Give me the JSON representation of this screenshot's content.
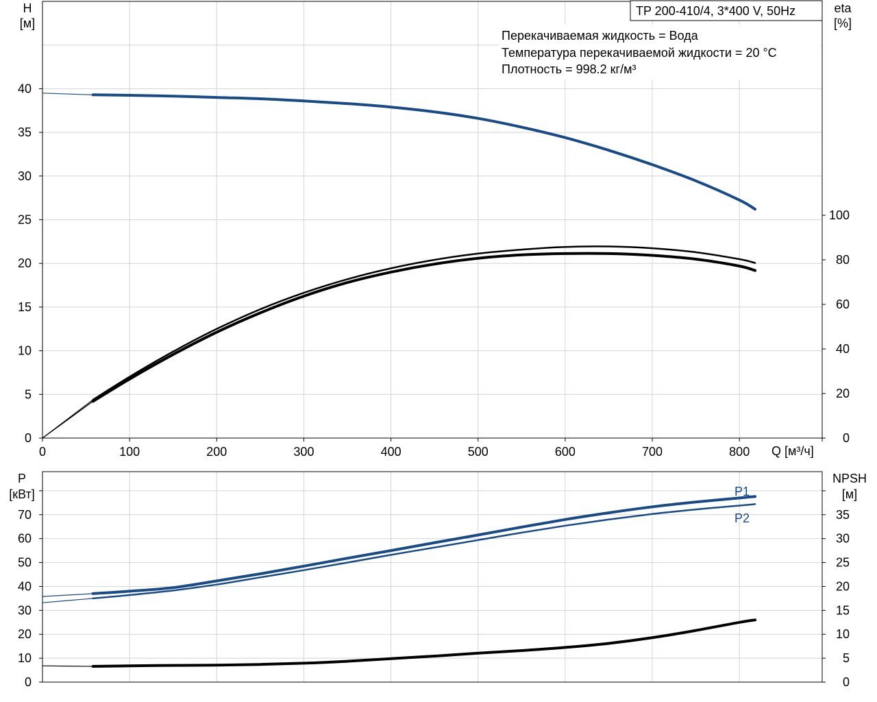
{
  "model_label": "TP 200-410/4, 3*400 V, 50Hz",
  "liquid_info": [
    "Перекачиваемая жидкость = Вода",
    "Температура перекачиваемой жидкости = 20 °C",
    "Плотность = 998.2 кг/м³"
  ],
  "colors": {
    "blue": "#174a87",
    "black": "#000000",
    "grid": "#d4d4d4",
    "frame": "#000000"
  },
  "chart_data": [
    {
      "type": "line",
      "title": "",
      "xlabel": "Q [м³/ч]",
      "ylabel_left": [
        "H",
        "[м]"
      ],
      "ylabel_right": [
        "eta",
        "[%]"
      ],
      "xlim": [
        0,
        895
      ],
      "x_ticks": [
        0,
        100,
        200,
        300,
        400,
        500,
        600,
        700,
        800
      ],
      "ylim_left": [
        0,
        50
      ],
      "y_ticks_left": [
        0,
        5,
        10,
        15,
        20,
        25,
        30,
        35,
        40
      ],
      "ylim_right": [
        0,
        196
      ],
      "y_ticks_right": [
        0,
        20,
        40,
        60,
        80,
        100
      ],
      "grid": true,
      "series": [
        {
          "axis": "left",
          "color": "blue",
          "extension": [
            [
              0,
              39.5
            ],
            [
              58,
              39.3
            ]
          ],
          "points": [
            [
              58,
              39.3
            ],
            [
              100,
              39.25
            ],
            [
              150,
              39.15
            ],
            [
              200,
              39.0
            ],
            [
              250,
              38.85
            ],
            [
              300,
              38.6
            ],
            [
              350,
              38.3
            ],
            [
              400,
              37.9
            ],
            [
              450,
              37.35
            ],
            [
              500,
              36.6
            ],
            [
              550,
              35.6
            ],
            [
              600,
              34.4
            ],
            [
              650,
              32.95
            ],
            [
              700,
              31.3
            ],
            [
              750,
              29.45
            ],
            [
              800,
              27.25
            ],
            [
              818,
              26.2
            ]
          ]
        },
        {
          "axis": "right",
          "color": "black",
          "extension": [
            [
              0,
              0
            ],
            [
              58,
              16.5
            ]
          ],
          "points": [
            [
              58,
              16.5
            ],
            [
              100,
              26.5
            ],
            [
              150,
              37.5
            ],
            [
              200,
              47.5
            ],
            [
              250,
              56.2
            ],
            [
              300,
              63.7
            ],
            [
              350,
              69.8
            ],
            [
              400,
              74.5
            ],
            [
              450,
              78.1
            ],
            [
              500,
              80.7
            ],
            [
              550,
              82.2
            ],
            [
              600,
              82.8
            ],
            [
              650,
              82.8
            ],
            [
              700,
              82.0
            ],
            [
              750,
              80.3
            ],
            [
              800,
              77.2
            ],
            [
              818,
              75.2
            ]
          ]
        },
        {
          "axis": "right",
          "color": "black",
          "extension": [
            [
              0,
              0
            ],
            [
              58,
              17.2
            ]
          ],
          "points": [
            [
              58,
              17.2
            ],
            [
              100,
              27.5
            ],
            [
              150,
              38.8
            ],
            [
              200,
              49.0
            ],
            [
              250,
              57.8
            ],
            [
              300,
              65.2
            ],
            [
              350,
              71.3
            ],
            [
              400,
              76.2
            ],
            [
              450,
              80.0
            ],
            [
              500,
              82.8
            ],
            [
              550,
              84.6
            ],
            [
              600,
              85.8
            ],
            [
              650,
              86.0
            ],
            [
              700,
              85.2
            ],
            [
              750,
              83.4
            ],
            [
              800,
              80.3
            ],
            [
              818,
              78.6
            ]
          ]
        }
      ]
    },
    {
      "type": "line",
      "title": "",
      "ylabel_left": [
        "P",
        "[кВт]"
      ],
      "ylabel_right": [
        "NPSH",
        "[м]"
      ],
      "xlim": [
        0,
        895
      ],
      "ylim_left": [
        0,
        88
      ],
      "y_ticks_left": [
        0,
        10,
        20,
        30,
        40,
        50,
        60,
        70
      ],
      "ylim_right": [
        0,
        44
      ],
      "y_ticks_right": [
        0,
        5,
        10,
        15,
        20,
        25,
        30,
        35
      ],
      "grid": true,
      "series": [
        {
          "name": "P1",
          "axis": "left",
          "color": "blue",
          "extension": [
            [
              0,
              35.8
            ],
            [
              58,
              37.0
            ]
          ],
          "points": [
            [
              58,
              37.0
            ],
            [
              100,
              38.0
            ],
            [
              150,
              39.5
            ],
            [
              200,
              42.3
            ],
            [
              250,
              45.3
            ],
            [
              300,
              48.5
            ],
            [
              350,
              51.8
            ],
            [
              400,
              55.0
            ],
            [
              450,
              58.3
            ],
            [
              500,
              61.5
            ],
            [
              550,
              64.8
            ],
            [
              600,
              68.0
            ],
            [
              650,
              70.8
            ],
            [
              700,
              73.3
            ],
            [
              750,
              75.3
            ],
            [
              800,
              77.0
            ],
            [
              818,
              77.6
            ]
          ]
        },
        {
          "name": "P2",
          "axis": "left",
          "color": "blue",
          "extension": [
            [
              0,
              33.2
            ],
            [
              58,
              35.0
            ]
          ],
          "points": [
            [
              58,
              35.0
            ],
            [
              100,
              36.4
            ],
            [
              150,
              38.3
            ],
            [
              200,
              40.8
            ],
            [
              250,
              43.8
            ],
            [
              300,
              46.8
            ],
            [
              350,
              50.0
            ],
            [
              400,
              53.2
            ],
            [
              450,
              56.3
            ],
            [
              500,
              59.4
            ],
            [
              550,
              62.5
            ],
            [
              600,
              65.4
            ],
            [
              650,
              68.0
            ],
            [
              700,
              70.3
            ],
            [
              750,
              72.2
            ],
            [
              800,
              73.8
            ],
            [
              818,
              74.4
            ]
          ]
        },
        {
          "axis": "right",
          "color": "black",
          "extension": [
            [
              0,
              3.4
            ],
            [
              58,
              3.3
            ]
          ],
          "points": [
            [
              58,
              3.3
            ],
            [
              100,
              3.4
            ],
            [
              150,
              3.5
            ],
            [
              200,
              3.55
            ],
            [
              250,
              3.7
            ],
            [
              300,
              3.95
            ],
            [
              350,
              4.35
            ],
            [
              400,
              4.9
            ],
            [
              450,
              5.45
            ],
            [
              500,
              6.05
            ],
            [
              550,
              6.6
            ],
            [
              600,
              7.25
            ],
            [
              650,
              8.1
            ],
            [
              700,
              9.3
            ],
            [
              750,
              10.8
            ],
            [
              800,
              12.5
            ],
            [
              818,
              13.0
            ]
          ]
        }
      ]
    }
  ]
}
